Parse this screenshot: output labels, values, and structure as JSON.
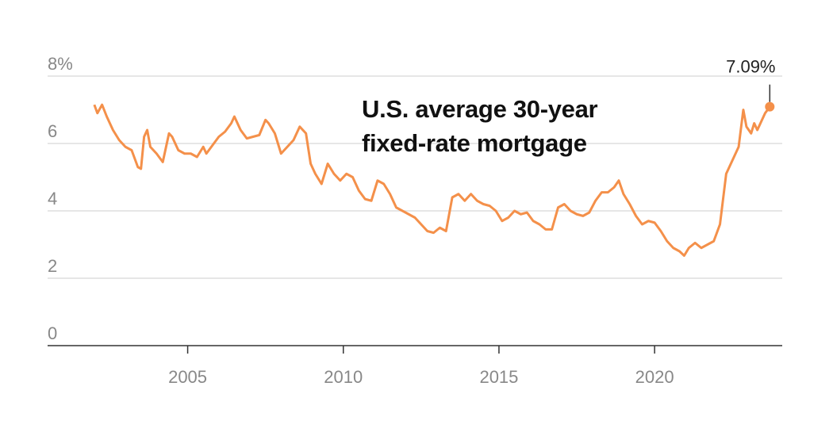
{
  "chart_data": {
    "type": "line",
    "title": "U.S. average 30-year fixed-rate mortgage",
    "x": [
      2002.0,
      2002.1,
      2002.25,
      2002.4,
      2002.6,
      2002.8,
      2003.0,
      2003.2,
      2003.4,
      2003.5,
      2003.6,
      2003.7,
      2003.8,
      2004.0,
      2004.2,
      2004.4,
      2004.5,
      2004.7,
      2004.9,
      2005.1,
      2005.3,
      2005.5,
      2005.6,
      2005.8,
      2006.0,
      2006.2,
      2006.4,
      2006.5,
      2006.7,
      2006.9,
      2007.1,
      2007.3,
      2007.5,
      2007.6,
      2007.8,
      2008.0,
      2008.2,
      2008.4,
      2008.6,
      2008.8,
      2008.95,
      2009.1,
      2009.3,
      2009.5,
      2009.7,
      2009.9,
      2010.1,
      2010.3,
      2010.5,
      2010.7,
      2010.9,
      2011.1,
      2011.3,
      2011.5,
      2011.7,
      2011.9,
      2012.1,
      2012.3,
      2012.5,
      2012.7,
      2012.9,
      2013.1,
      2013.3,
      2013.5,
      2013.7,
      2013.9,
      2014.1,
      2014.3,
      2014.5,
      2014.7,
      2014.9,
      2015.1,
      2015.3,
      2015.5,
      2015.7,
      2015.9,
      2016.1,
      2016.3,
      2016.5,
      2016.7,
      2016.9,
      2017.1,
      2017.3,
      2017.5,
      2017.7,
      2017.9,
      2018.1,
      2018.3,
      2018.5,
      2018.7,
      2018.85,
      2019.0,
      2019.2,
      2019.4,
      2019.6,
      2019.8,
      2020.0,
      2020.2,
      2020.4,
      2020.6,
      2020.8,
      2020.95,
      2021.1,
      2021.3,
      2021.5,
      2021.7,
      2021.9,
      2022.1,
      2022.3,
      2022.5,
      2022.7,
      2022.85,
      2022.95,
      2023.1,
      2023.2,
      2023.3,
      2023.45,
      2023.55,
      2023.7
    ],
    "series": [
      {
        "color": "#f4904a",
        "values": [
          7.15,
          6.9,
          7.15,
          6.8,
          6.4,
          6.1,
          5.9,
          5.8,
          5.3,
          5.25,
          6.2,
          6.4,
          5.9,
          5.7,
          5.45,
          6.3,
          6.2,
          5.8,
          5.7,
          5.7,
          5.6,
          5.9,
          5.7,
          5.95,
          6.2,
          6.35,
          6.6,
          6.8,
          6.4,
          6.15,
          6.2,
          6.25,
          6.7,
          6.6,
          6.3,
          5.7,
          5.9,
          6.1,
          6.5,
          6.3,
          5.4,
          5.1,
          4.8,
          5.4,
          5.1,
          4.9,
          5.1,
          5.0,
          4.6,
          4.35,
          4.3,
          4.9,
          4.8,
          4.5,
          4.1,
          4.0,
          3.9,
          3.8,
          3.6,
          3.4,
          3.35,
          3.5,
          3.4,
          4.4,
          4.5,
          4.3,
          4.5,
          4.3,
          4.2,
          4.15,
          4.0,
          3.7,
          3.8,
          4.0,
          3.9,
          3.95,
          3.7,
          3.6,
          3.45,
          3.45,
          4.1,
          4.2,
          4.0,
          3.9,
          3.85,
          3.95,
          4.3,
          4.55,
          4.55,
          4.7,
          4.9,
          4.5,
          4.2,
          3.85,
          3.6,
          3.7,
          3.65,
          3.4,
          3.1,
          2.9,
          2.8,
          2.67,
          2.9,
          3.05,
          2.9,
          3.0,
          3.1,
          3.6,
          5.1,
          5.5,
          5.9,
          7.0,
          6.5,
          6.3,
          6.6,
          6.4,
          6.7,
          6.9,
          7.09
        ],
        "value_labels": [
          null,
          null,
          null,
          null,
          null,
          null,
          null,
          null,
          null,
          null,
          null,
          null,
          null,
          null,
          null,
          null,
          null,
          null,
          null,
          null,
          null,
          null,
          null,
          null,
          null,
          null,
          null,
          null,
          null,
          null,
          null,
          null,
          null,
          null,
          null,
          null,
          null,
          null,
          null,
          null,
          null,
          null,
          null,
          null,
          null,
          null,
          null,
          null,
          null,
          null,
          null,
          null,
          null,
          null,
          null,
          null,
          null,
          null,
          null,
          null,
          null,
          null,
          null,
          null,
          null,
          null,
          null,
          null,
          null,
          null,
          null,
          null,
          null,
          null,
          null,
          null,
          null,
          null,
          null,
          null,
          null,
          null,
          null,
          null,
          null,
          null,
          null,
          null,
          null,
          null,
          null,
          null,
          null,
          null,
          null,
          null,
          null,
          null,
          null,
          null,
          null,
          null,
          null,
          null,
          null,
          null,
          null,
          null,
          null,
          null,
          null,
          null,
          null,
          null,
          null,
          null,
          null,
          null,
          "7.09%"
        ]
      }
    ],
    "xlim": [
      2000.5,
      2024.1
    ],
    "xticks": [
      2005,
      2010,
      2015,
      2020
    ],
    "ylim": [
      0,
      8
    ],
    "yticks": [
      0,
      2,
      4,
      6,
      {
        "value": 8,
        "label": "8%"
      }
    ],
    "grid": true
  }
}
